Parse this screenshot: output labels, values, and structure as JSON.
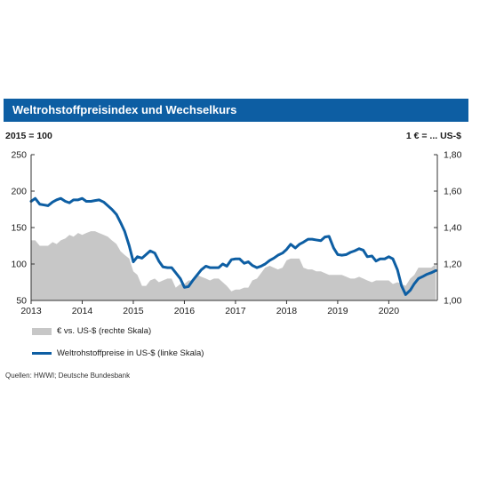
{
  "title": "Weltrohstoffpreisindex und Wechselkurs",
  "left_unit": "2015 = 100",
  "right_unit": "1 € = ... US-$",
  "source": "Quellen: HWWI; Deutsche Bundesbank",
  "colors": {
    "title_bg": "#0d5ea3",
    "line": "#0d5ea3",
    "area": "#c7c7c7"
  },
  "chart_data": {
    "type": "line",
    "x_range": [
      2013.0,
      2020.95
    ],
    "x_ticks": [
      "2013",
      "2014",
      "2015",
      "2016",
      "2017",
      "2018",
      "2019",
      "2020"
    ],
    "left_axis": {
      "range": [
        50,
        250
      ],
      "ticks": [
        "50",
        "100",
        "150",
        "200",
        "250"
      ]
    },
    "right_axis": {
      "range": [
        1.0,
        1.8
      ],
      "ticks": [
        "1,00",
        "1,20",
        "1,40",
        "1,60",
        "1,80"
      ]
    },
    "grid": false,
    "legend_position": "bottom-left",
    "series": [
      {
        "name": "€ vs. US-$ (rechte Skala)",
        "type": "area",
        "axis": "right",
        "x": [
          2013.0,
          2013.08,
          2013.17,
          2013.25,
          2013.33,
          2013.42,
          2013.5,
          2013.58,
          2013.67,
          2013.75,
          2013.83,
          2013.92,
          2014.0,
          2014.08,
          2014.17,
          2014.25,
          2014.33,
          2014.42,
          2014.5,
          2014.58,
          2014.67,
          2014.75,
          2014.83,
          2014.92,
          2015.0,
          2015.08,
          2015.17,
          2015.25,
          2015.33,
          2015.42,
          2015.5,
          2015.58,
          2015.67,
          2015.75,
          2015.83,
          2015.92,
          2016.0,
          2016.08,
          2016.17,
          2016.25,
          2016.33,
          2016.42,
          2016.5,
          2016.58,
          2016.67,
          2016.75,
          2016.83,
          2016.92,
          2017.0,
          2017.08,
          2017.17,
          2017.25,
          2017.33,
          2017.42,
          2017.5,
          2017.58,
          2017.67,
          2017.75,
          2017.83,
          2017.92,
          2018.0,
          2018.08,
          2018.17,
          2018.25,
          2018.33,
          2018.42,
          2018.5,
          2018.58,
          2018.67,
          2018.75,
          2018.83,
          2018.92,
          2019.0,
          2019.08,
          2019.17,
          2019.25,
          2019.33,
          2019.42,
          2019.5,
          2019.58,
          2019.67,
          2019.75,
          2019.83,
          2019.92,
          2020.0,
          2020.08,
          2020.17,
          2020.25,
          2020.33,
          2020.42,
          2020.5,
          2020.58,
          2020.67,
          2020.75,
          2020.83,
          2020.92
        ],
        "values": [
          1.33,
          1.33,
          1.3,
          1.3,
          1.3,
          1.32,
          1.31,
          1.33,
          1.34,
          1.36,
          1.35,
          1.37,
          1.36,
          1.37,
          1.38,
          1.38,
          1.37,
          1.36,
          1.35,
          1.33,
          1.31,
          1.27,
          1.25,
          1.23,
          1.16,
          1.14,
          1.08,
          1.08,
          1.11,
          1.12,
          1.1,
          1.11,
          1.12,
          1.12,
          1.07,
          1.09,
          1.09,
          1.11,
          1.11,
          1.14,
          1.13,
          1.12,
          1.11,
          1.12,
          1.12,
          1.1,
          1.08,
          1.05,
          1.06,
          1.06,
          1.07,
          1.07,
          1.11,
          1.12,
          1.15,
          1.18,
          1.19,
          1.18,
          1.17,
          1.18,
          1.22,
          1.23,
          1.23,
          1.23,
          1.18,
          1.17,
          1.17,
          1.16,
          1.16,
          1.15,
          1.14,
          1.14,
          1.14,
          1.14,
          1.13,
          1.12,
          1.12,
          1.13,
          1.12,
          1.11,
          1.1,
          1.11,
          1.11,
          1.11,
          1.11,
          1.09,
          1.1,
          1.09,
          1.08,
          1.12,
          1.14,
          1.18,
          1.18,
          1.18,
          1.18,
          1.2
        ]
      },
      {
        "name": "Weltrohstoffpreise in US-$ (linke Skala)",
        "type": "line",
        "axis": "left",
        "x": [
          2013.0,
          2013.08,
          2013.17,
          2013.25,
          2013.33,
          2013.42,
          2013.5,
          2013.58,
          2013.67,
          2013.75,
          2013.83,
          2013.92,
          2014.0,
          2014.08,
          2014.17,
          2014.25,
          2014.33,
          2014.42,
          2014.5,
          2014.58,
          2014.67,
          2014.75,
          2014.83,
          2014.92,
          2015.0,
          2015.08,
          2015.17,
          2015.25,
          2015.33,
          2015.42,
          2015.5,
          2015.58,
          2015.67,
          2015.75,
          2015.83,
          2015.92,
          2016.0,
          2016.08,
          2016.17,
          2016.25,
          2016.33,
          2016.42,
          2016.5,
          2016.58,
          2016.67,
          2016.75,
          2016.83,
          2016.92,
          2017.0,
          2017.08,
          2017.17,
          2017.25,
          2017.33,
          2017.42,
          2017.5,
          2017.58,
          2017.67,
          2017.75,
          2017.83,
          2017.92,
          2018.0,
          2018.08,
          2018.17,
          2018.25,
          2018.33,
          2018.42,
          2018.5,
          2018.58,
          2018.67,
          2018.75,
          2018.83,
          2018.92,
          2019.0,
          2019.08,
          2019.17,
          2019.25,
          2019.33,
          2019.42,
          2019.5,
          2019.58,
          2019.67,
          2019.75,
          2019.83,
          2019.92,
          2020.0,
          2020.08,
          2020.17,
          2020.25,
          2020.33,
          2020.42,
          2020.5,
          2020.58,
          2020.67,
          2020.75,
          2020.83,
          2020.92
        ],
        "values": [
          186,
          190,
          182,
          181,
          180,
          185,
          188,
          190,
          186,
          184,
          188,
          188,
          190,
          186,
          186,
          187,
          188,
          185,
          180,
          175,
          168,
          157,
          145,
          125,
          103,
          110,
          108,
          113,
          118,
          115,
          104,
          96,
          95,
          95,
          88,
          80,
          68,
          69,
          78,
          85,
          92,
          97,
          95,
          95,
          95,
          100,
          97,
          106,
          107,
          107,
          101,
          103,
          98,
          95,
          97,
          100,
          105,
          108,
          112,
          115,
          120,
          127,
          122,
          127,
          130,
          134,
          134,
          133,
          132,
          137,
          138,
          122,
          113,
          112,
          113,
          116,
          118,
          121,
          119,
          110,
          111,
          104,
          107,
          107,
          110,
          107,
          92,
          70,
          58,
          64,
          73,
          80,
          83,
          86,
          88,
          91
        ]
      }
    ]
  }
}
